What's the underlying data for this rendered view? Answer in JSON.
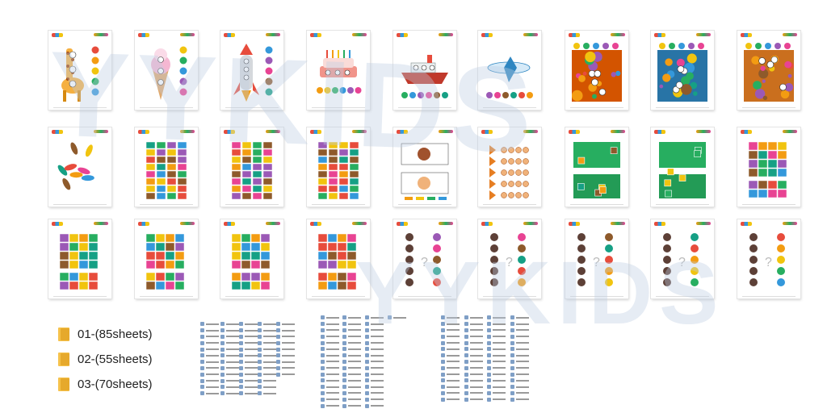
{
  "watermark": "YYKIDS",
  "folders": [
    {
      "label": "01-(85sheets)"
    },
    {
      "label": "02-(55sheets)"
    },
    {
      "label": "03-(70sheets)"
    }
  ],
  "sheet_rows": [
    [
      {
        "art": "giraffe"
      },
      {
        "art": "ice-cream"
      },
      {
        "art": "rocket"
      },
      {
        "art": "cake"
      },
      {
        "art": "ship"
      },
      {
        "art": "airplane"
      },
      {
        "art": "autumn-scene"
      },
      {
        "art": "animal-scene"
      },
      {
        "art": "fruit-scene"
      }
    ],
    [
      {
        "art": "leaf-pieces"
      },
      {
        "art": "strip-puzzle"
      },
      {
        "art": "strip-puzzle"
      },
      {
        "art": "strip-puzzle"
      },
      {
        "art": "shape-match"
      },
      {
        "art": "butterfly-match"
      },
      {
        "art": "jigsaw-scene"
      },
      {
        "art": "jigsaw-scene"
      },
      {
        "art": "tile-puzzle"
      }
    ],
    [
      {
        "art": "tile-puzzle"
      },
      {
        "art": "tile-puzzle"
      },
      {
        "art": "tile-puzzle"
      },
      {
        "art": "tile-puzzle"
      },
      {
        "art": "shadow-match"
      },
      {
        "art": "shadow-match"
      },
      {
        "art": "shadow-match"
      },
      {
        "art": "shadow-match"
      },
      {
        "art": "shadow-match"
      }
    ]
  ],
  "colors": {
    "folder": "#f6c24b",
    "watermark": "#becde1",
    "file_icon": "#7f9fc6"
  }
}
